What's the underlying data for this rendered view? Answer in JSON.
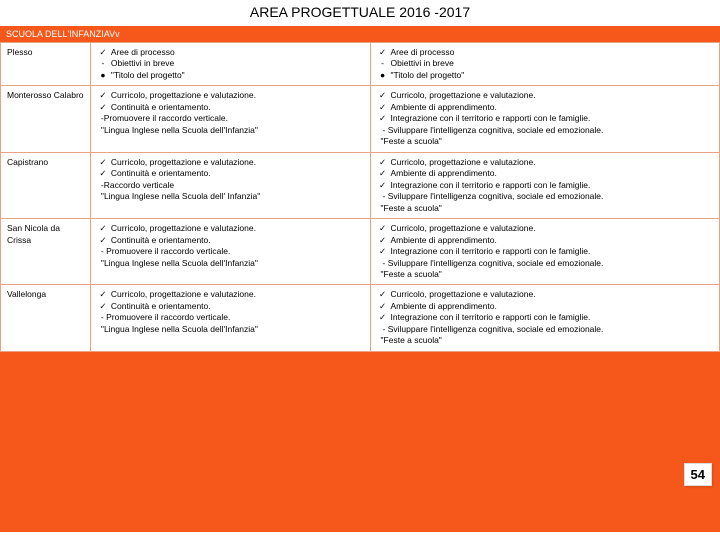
{
  "title": "AREA PROGETTUALE 2016 -2017",
  "tab": "SCUOLA DELL'INFANZIAVv",
  "pagenum": "54",
  "colors": {
    "page_bg": "#ffffff",
    "container_bg": "#f5581a",
    "cell_border": "#e8a383",
    "text": "#000000",
    "tab_text": "#ffffff"
  },
  "header_row": {
    "plesso": "Plesso",
    "col2": {
      "l1_mark": "✓",
      "l1": "Aree di processo",
      "l2_mark": "-",
      "l2": "Obiettivi in breve",
      "l3_mark": "●",
      "l3": "\"Titolo del progetto\""
    },
    "col3": {
      "l1_mark": "✓",
      "l1": "Aree di processo",
      "l2_mark": "-",
      "l2": "Obiettivi in breve",
      "l3_mark": "●",
      "l3": "\"Titolo del progetto\""
    }
  },
  "rows": [
    {
      "plesso": "Monterosso Calabro",
      "col2": {
        "b1_mark": "✓",
        "b1": "Curricolo, progettazione e valutazione.",
        "b2_mark": "✓",
        "b2": "Continuità e orientamento.",
        "s1": "-Promuovere il raccordo verticale.",
        "proj": "\"Lingua Inglese nella Scuola dell'Infanzia\""
      },
      "col3": {
        "b1_mark": "✓",
        "b1": "Curricolo, progettazione e valutazione.",
        "b2_mark": "✓",
        "b2": "Ambiente di apprendimento.",
        "b3_mark": "✓",
        "b3": "Integrazione con il territorio e rapporti con le famiglie.",
        "n1": "  - Sviluppare l'intelligenza cognitiva, sociale ed emozionale.",
        "proj": "\"Feste a scuola\""
      }
    },
    {
      "plesso": "Capistrano",
      "col2": {
        "b1_mark": "✓",
        "b1": "Curricolo, progettazione e valutazione.",
        "b2_mark": "✓",
        "b2": "Continuità e orientamento.",
        "s1": "      -Raccordo verticale",
        "proj": "\"Lingua Inglese nella Scuola dell' Infanzia\""
      },
      "col3": {
        "b1_mark": "✓",
        "b1": "Curricolo, progettazione e valutazione.",
        "b2_mark": "✓",
        "b2": "Ambiente di apprendimento.",
        "b3_mark": "✓",
        "b3": "Integrazione con il territorio e rapporti con le famiglie.",
        "n1": "  - Sviluppare l'intelligenza cognitiva, sociale ed emozionale.",
        "proj": "\"Feste a scuola\""
      }
    },
    {
      "plesso": "San Nicola da Crissa",
      "col2": {
        "b1_mark": "✓",
        "b1": "Curricolo, progettazione e valutazione.",
        "b2_mark": "✓",
        "b2": "Continuità e orientamento.",
        "s1": "        - Promuovere il raccordo verticale.",
        "proj": "\"Lingua Inglese nella Scuola dell'Infanzia\""
      },
      "col3": {
        "b1_mark": "✓",
        "b1": "Curricolo, progettazione e valutazione.",
        "b2_mark": "✓",
        "b2": "Ambiente di apprendimento.",
        "b3_mark": "✓",
        "b3": "Integrazione con il territorio e rapporti con le famiglie.",
        "n1": "  - Sviluppare l'intelligenza cognitiva, sociale ed emozionale.",
        "proj": "\"Feste a scuola\""
      }
    },
    {
      "plesso": "Vallelonga",
      "col2": {
        "b1_mark": "✓",
        "b1": "Curricolo, progettazione e valutazione.",
        "b2_mark": "✓",
        "b2": "Continuità e orientamento.",
        "s1": "    - Promuovere il raccordo verticale.",
        "proj": "\"Lingua Inglese nella Scuola dell'Infanzia\""
      },
      "col3": {
        "b1_mark": "✓",
        "b1": "Curricolo, progettazione e valutazione.",
        "b2_mark": "✓",
        "b2": "Ambiente di apprendimento.",
        "b3_mark": "✓",
        "b3": "Integrazione con il territorio e rapporti con le famiglie.",
        "n1": "  - Sviluppare l'intelligenza cognitiva, sociale ed emozionale.",
        "proj": "\"Feste a scuola\""
      }
    }
  ]
}
